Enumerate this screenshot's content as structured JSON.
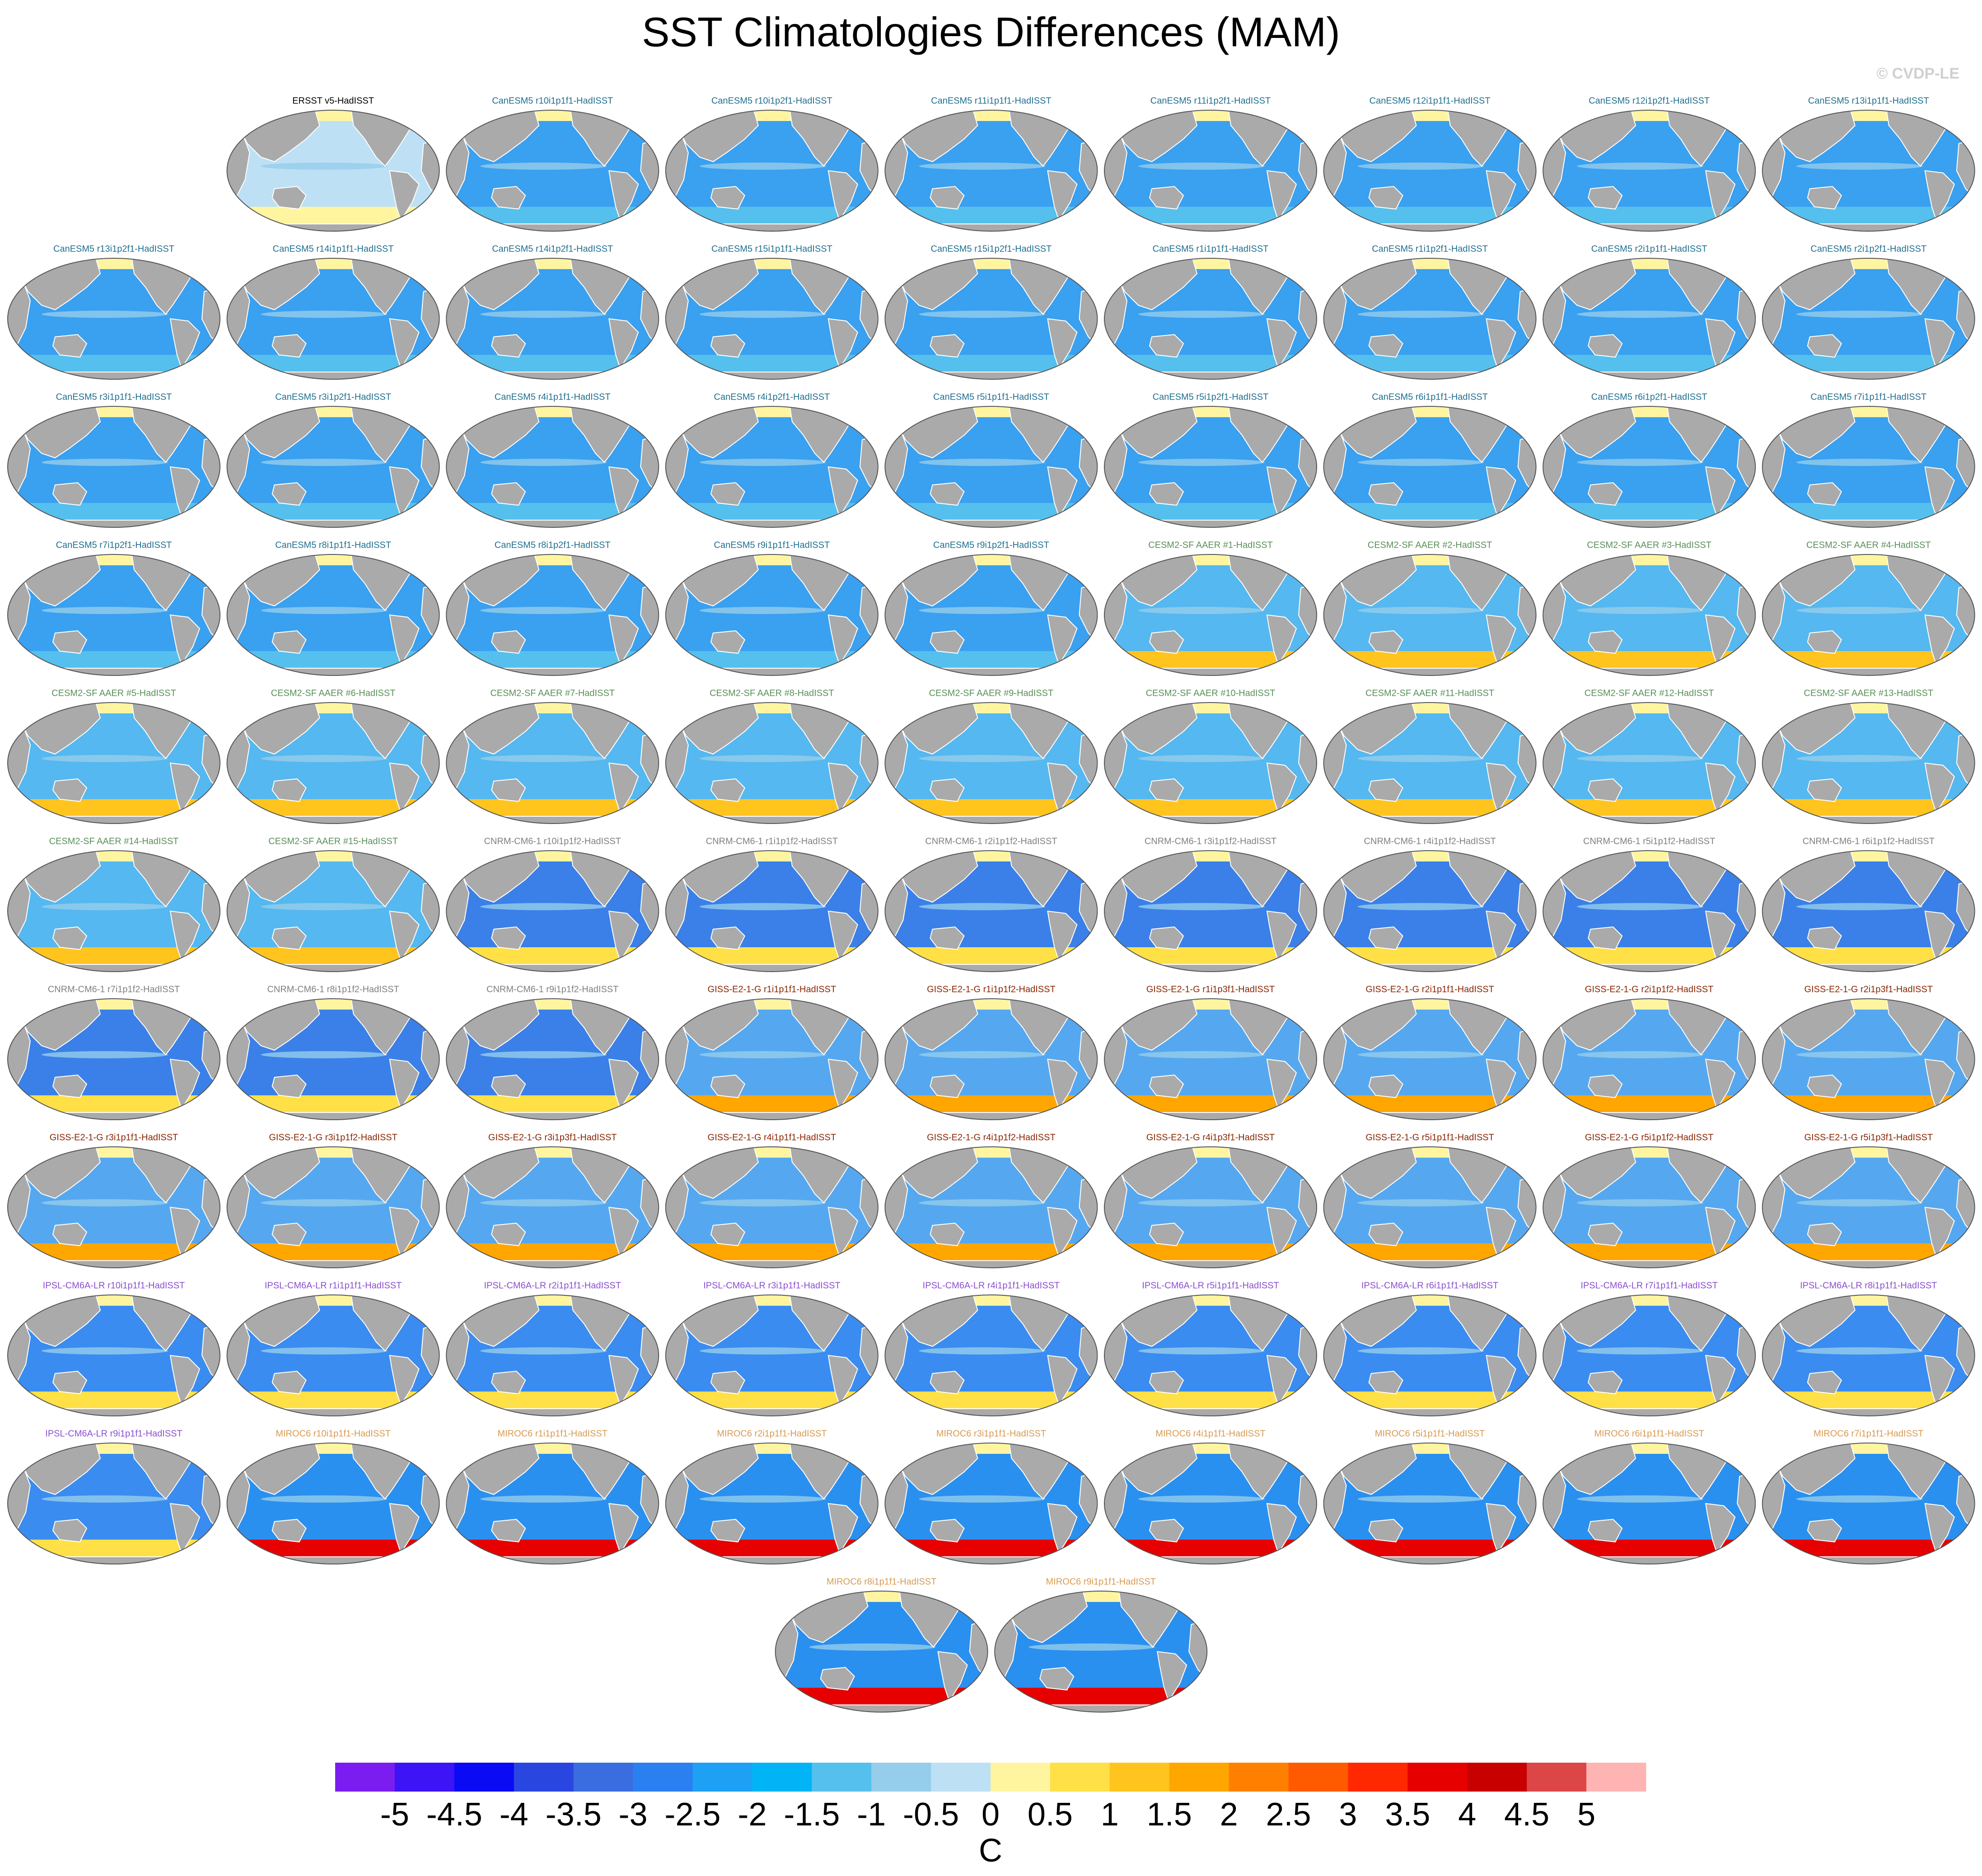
{
  "title": "SST Climatologies Differences (MAM)",
  "copyright": "© CVDP-LE",
  "panels": [
    {
      "label": "ERSST v5-HadISST",
      "color": "#000000",
      "fill": "#bde0f5",
      "accent": "#fff5a0"
    },
    {
      "label": "CanESM5 r10i1p1f1-HadISST",
      "color": "#1f6f8f",
      "fill": "#3aa0f0",
      "accent": "#55c0ee"
    },
    {
      "label": "CanESM5 r10i1p2f1-HadISST",
      "color": "#1f6f8f",
      "fill": "#3aa0f0",
      "accent": "#55c0ee"
    },
    {
      "label": "CanESM5 r11i1p1f1-HadISST",
      "color": "#1f6f8f",
      "fill": "#3aa0f0",
      "accent": "#55c0ee"
    },
    {
      "label": "CanESM5 r11i1p2f1-HadISST",
      "color": "#1f6f8f",
      "fill": "#3aa0f0",
      "accent": "#55c0ee"
    },
    {
      "label": "CanESM5 r12i1p1f1-HadISST",
      "color": "#1f6f8f",
      "fill": "#3aa0f0",
      "accent": "#55c0ee"
    },
    {
      "label": "CanESM5 r12i1p2f1-HadISST",
      "color": "#1f6f8f",
      "fill": "#3aa0f0",
      "accent": "#55c0ee"
    },
    {
      "label": "CanESM5 r13i1p1f1-HadISST",
      "color": "#1f6f8f",
      "fill": "#3aa0f0",
      "accent": "#55c0ee"
    },
    {
      "label": "CanESM5 r13i1p2f1-HadISST",
      "color": "#1f6f8f",
      "fill": "#3aa0f0",
      "accent": "#55c0ee"
    },
    {
      "label": "CanESM5 r14i1p1f1-HadISST",
      "color": "#1f6f8f",
      "fill": "#3aa0f0",
      "accent": "#55c0ee"
    },
    {
      "label": "CanESM5 r14i1p2f1-HadISST",
      "color": "#1f6f8f",
      "fill": "#3aa0f0",
      "accent": "#55c0ee"
    },
    {
      "label": "CanESM5 r15i1p1f1-HadISST",
      "color": "#1f6f8f",
      "fill": "#3aa0f0",
      "accent": "#55c0ee"
    },
    {
      "label": "CanESM5 r15i1p2f1-HadISST",
      "color": "#1f6f8f",
      "fill": "#3aa0f0",
      "accent": "#55c0ee"
    },
    {
      "label": "CanESM5 r1i1p1f1-HadISST",
      "color": "#1f6f8f",
      "fill": "#3aa0f0",
      "accent": "#55c0ee"
    },
    {
      "label": "CanESM5 r1i1p2f1-HadISST",
      "color": "#1f6f8f",
      "fill": "#3aa0f0",
      "accent": "#55c0ee"
    },
    {
      "label": "CanESM5 r2i1p1f1-HadISST",
      "color": "#1f6f8f",
      "fill": "#3aa0f0",
      "accent": "#55c0ee"
    },
    {
      "label": "CanESM5 r2i1p2f1-HadISST",
      "color": "#1f6f8f",
      "fill": "#3aa0f0",
      "accent": "#55c0ee"
    },
    {
      "label": "CanESM5 r3i1p1f1-HadISST",
      "color": "#1f6f8f",
      "fill": "#3aa0f0",
      "accent": "#55c0ee"
    },
    {
      "label": "CanESM5 r3i1p2f1-HadISST",
      "color": "#1f6f8f",
      "fill": "#3aa0f0",
      "accent": "#55c0ee"
    },
    {
      "label": "CanESM5 r4i1p1f1-HadISST",
      "color": "#1f6f8f",
      "fill": "#3aa0f0",
      "accent": "#55c0ee"
    },
    {
      "label": "CanESM5 r4i1p2f1-HadISST",
      "color": "#1f6f8f",
      "fill": "#3aa0f0",
      "accent": "#55c0ee"
    },
    {
      "label": "CanESM5 r5i1p1f1-HadISST",
      "color": "#1f6f8f",
      "fill": "#3aa0f0",
      "accent": "#55c0ee"
    },
    {
      "label": "CanESM5 r5i1p2f1-HadISST",
      "color": "#1f6f8f",
      "fill": "#3aa0f0",
      "accent": "#55c0ee"
    },
    {
      "label": "CanESM5 r6i1p1f1-HadISST",
      "color": "#1f6f8f",
      "fill": "#3aa0f0",
      "accent": "#55c0ee"
    },
    {
      "label": "CanESM5 r6i1p2f1-HadISST",
      "color": "#1f6f8f",
      "fill": "#3aa0f0",
      "accent": "#55c0ee"
    },
    {
      "label": "CanESM5 r7i1p1f1-HadISST",
      "color": "#1f6f8f",
      "fill": "#3aa0f0",
      "accent": "#55c0ee"
    },
    {
      "label": "CanESM5 r7i1p2f1-HadISST",
      "color": "#1f6f8f",
      "fill": "#3aa0f0",
      "accent": "#55c0ee"
    },
    {
      "label": "CanESM5 r8i1p1f1-HadISST",
      "color": "#1f6f8f",
      "fill": "#3aa0f0",
      "accent": "#55c0ee"
    },
    {
      "label": "CanESM5 r8i1p2f1-HadISST",
      "color": "#1f6f8f",
      "fill": "#3aa0f0",
      "accent": "#55c0ee"
    },
    {
      "label": "CanESM5 r9i1p1f1-HadISST",
      "color": "#1f6f8f",
      "fill": "#3aa0f0",
      "accent": "#55c0ee"
    },
    {
      "label": "CanESM5 r9i1p2f1-HadISST",
      "color": "#1f6f8f",
      "fill": "#3aa0f0",
      "accent": "#55c0ee"
    },
    {
      "label": "CESM2-SF AAER #1-HadISST",
      "color": "#5a8f5a",
      "fill": "#55b8f0",
      "accent": "#ffc41e"
    },
    {
      "label": "CESM2-SF AAER #2-HadISST",
      "color": "#5a8f5a",
      "fill": "#55b8f0",
      "accent": "#ffc41e"
    },
    {
      "label": "CESM2-SF AAER #3-HadISST",
      "color": "#5a8f5a",
      "fill": "#55b8f0",
      "accent": "#ffc41e"
    },
    {
      "label": "CESM2-SF AAER #4-HadISST",
      "color": "#5a8f5a",
      "fill": "#55b8f0",
      "accent": "#ffc41e"
    },
    {
      "label": "CESM2-SF AAER #5-HadISST",
      "color": "#5a8f5a",
      "fill": "#55b8f0",
      "accent": "#ffc41e"
    },
    {
      "label": "CESM2-SF AAER #6-HadISST",
      "color": "#5a8f5a",
      "fill": "#55b8f0",
      "accent": "#ffc41e"
    },
    {
      "label": "CESM2-SF AAER #7-HadISST",
      "color": "#5a8f5a",
      "fill": "#55b8f0",
      "accent": "#ffc41e"
    },
    {
      "label": "CESM2-SF AAER #8-HadISST",
      "color": "#5a8f5a",
      "fill": "#55b8f0",
      "accent": "#ffc41e"
    },
    {
      "label": "CESM2-SF AAER #9-HadISST",
      "color": "#5a8f5a",
      "fill": "#55b8f0",
      "accent": "#ffc41e"
    },
    {
      "label": "CESM2-SF AAER #10-HadISST",
      "color": "#5a8f5a",
      "fill": "#55b8f0",
      "accent": "#ffc41e"
    },
    {
      "label": "CESM2-SF AAER #11-HadISST",
      "color": "#5a8f5a",
      "fill": "#55b8f0",
      "accent": "#ffc41e"
    },
    {
      "label": "CESM2-SF AAER #12-HadISST",
      "color": "#5a8f5a",
      "fill": "#55b8f0",
      "accent": "#ffc41e"
    },
    {
      "label": "CESM2-SF AAER #13-HadISST",
      "color": "#5a8f5a",
      "fill": "#55b8f0",
      "accent": "#ffc41e"
    },
    {
      "label": "CESM2-SF AAER #14-HadISST",
      "color": "#5a8f5a",
      "fill": "#55b8f0",
      "accent": "#ffc41e"
    },
    {
      "label": "CESM2-SF AAER #15-HadISST",
      "color": "#5a8f5a",
      "fill": "#55b8f0",
      "accent": "#ffc41e"
    },
    {
      "label": "CNRM-CM6-1 r10i1p1f2-HadISST",
      "color": "#808080",
      "fill": "#3a80e8",
      "accent": "#ffe046"
    },
    {
      "label": "CNRM-CM6-1 r1i1p1f2-HadISST",
      "color": "#808080",
      "fill": "#3a80e8",
      "accent": "#ffe046"
    },
    {
      "label": "CNRM-CM6-1 r2i1p1f2-HadISST",
      "color": "#808080",
      "fill": "#3a80e8",
      "accent": "#ffe046"
    },
    {
      "label": "CNRM-CM6-1 r3i1p1f2-HadISST",
      "color": "#808080",
      "fill": "#3a80e8",
      "accent": "#ffe046"
    },
    {
      "label": "CNRM-CM6-1 r4i1p1f2-HadISST",
      "color": "#808080",
      "fill": "#3a80e8",
      "accent": "#ffe046"
    },
    {
      "label": "CNRM-CM6-1 r5i1p1f2-HadISST",
      "color": "#808080",
      "fill": "#3a80e8",
      "accent": "#ffe046"
    },
    {
      "label": "CNRM-CM6-1 r6i1p1f2-HadISST",
      "color": "#808080",
      "fill": "#3a80e8",
      "accent": "#ffe046"
    },
    {
      "label": "CNRM-CM6-1 r7i1p1f2-HadISST",
      "color": "#808080",
      "fill": "#3a80e8",
      "accent": "#ffe046"
    },
    {
      "label": "CNRM-CM6-1 r8i1p1f2-HadISST",
      "color": "#808080",
      "fill": "#3a80e8",
      "accent": "#ffe046"
    },
    {
      "label": "CNRM-CM6-1 r9i1p1f2-HadISST",
      "color": "#808080",
      "fill": "#3a80e8",
      "accent": "#ffe046"
    },
    {
      "label": "GISS-E2-1-G r1i1p1f1-HadISST",
      "color": "#8b2500",
      "fill": "#55a8f0",
      "accent": "#ffa600"
    },
    {
      "label": "GISS-E2-1-G r1i1p1f2-HadISST",
      "color": "#8b2500",
      "fill": "#55a8f0",
      "accent": "#ffa600"
    },
    {
      "label": "GISS-E2-1-G r1i1p3f1-HadISST",
      "color": "#8b2500",
      "fill": "#55a8f0",
      "accent": "#ffa600"
    },
    {
      "label": "GISS-E2-1-G r2i1p1f1-HadISST",
      "color": "#8b2500",
      "fill": "#55a8f0",
      "accent": "#ffa600"
    },
    {
      "label": "GISS-E2-1-G r2i1p1f2-HadISST",
      "color": "#8b2500",
      "fill": "#55a8f0",
      "accent": "#ffa600"
    },
    {
      "label": "GISS-E2-1-G r2i1p3f1-HadISST",
      "color": "#8b2500",
      "fill": "#55a8f0",
      "accent": "#ffa600"
    },
    {
      "label": "GISS-E2-1-G r3i1p1f1-HadISST",
      "color": "#8b2500",
      "fill": "#55a8f0",
      "accent": "#ffa600"
    },
    {
      "label": "GISS-E2-1-G r3i1p1f2-HadISST",
      "color": "#8b2500",
      "fill": "#55a8f0",
      "accent": "#ffa600"
    },
    {
      "label": "GISS-E2-1-G r3i1p3f1-HadISST",
      "color": "#8b2500",
      "fill": "#55a8f0",
      "accent": "#ffa600"
    },
    {
      "label": "GISS-E2-1-G r4i1p1f1-HadISST",
      "color": "#8b2500",
      "fill": "#55a8f0",
      "accent": "#ffa600"
    },
    {
      "label": "GISS-E2-1-G r4i1p1f2-HadISST",
      "color": "#8b2500",
      "fill": "#55a8f0",
      "accent": "#ffa600"
    },
    {
      "label": "GISS-E2-1-G r4i1p3f1-HadISST",
      "color": "#8b2500",
      "fill": "#55a8f0",
      "accent": "#ffa600"
    },
    {
      "label": "GISS-E2-1-G r5i1p1f1-HadISST",
      "color": "#8b2500",
      "fill": "#55a8f0",
      "accent": "#ffa600"
    },
    {
      "label": "GISS-E2-1-G r5i1p1f2-HadISST",
      "color": "#8b2500",
      "fill": "#55a8f0",
      "accent": "#ffa600"
    },
    {
      "label": "GISS-E2-1-G r5i1p3f1-HadISST",
      "color": "#8b2500",
      "fill": "#55a8f0",
      "accent": "#ffa600"
    },
    {
      "label": "IPSL-CM6A-LR r10i1p1f1-HadISST",
      "color": "#8a4fd0",
      "fill": "#3a8cf0",
      "accent": "#ffe046"
    },
    {
      "label": "IPSL-CM6A-LR r1i1p1f1-HadISST",
      "color": "#8a4fd0",
      "fill": "#3a8cf0",
      "accent": "#ffe046"
    },
    {
      "label": "IPSL-CM6A-LR r2i1p1f1-HadISST",
      "color": "#8a4fd0",
      "fill": "#3a8cf0",
      "accent": "#ffe046"
    },
    {
      "label": "IPSL-CM6A-LR r3i1p1f1-HadISST",
      "color": "#8a4fd0",
      "fill": "#3a8cf0",
      "accent": "#ffe046"
    },
    {
      "label": "IPSL-CM6A-LR r4i1p1f1-HadISST",
      "color": "#8a4fd0",
      "fill": "#3a8cf0",
      "accent": "#ffe046"
    },
    {
      "label": "IPSL-CM6A-LR r5i1p1f1-HadISST",
      "color": "#8a4fd0",
      "fill": "#3a8cf0",
      "accent": "#ffe046"
    },
    {
      "label": "IPSL-CM6A-LR r6i1p1f1-HadISST",
      "color": "#8a4fd0",
      "fill": "#3a8cf0",
      "accent": "#ffe046"
    },
    {
      "label": "IPSL-CM6A-LR r7i1p1f1-HadISST",
      "color": "#8a4fd0",
      "fill": "#3a8cf0",
      "accent": "#ffe046"
    },
    {
      "label": "IPSL-CM6A-LR r8i1p1f1-HadISST",
      "color": "#8a4fd0",
      "fill": "#3a8cf0",
      "accent": "#ffe046"
    },
    {
      "label": "IPSL-CM6A-LR r9i1p1f1-HadISST",
      "color": "#8a4fd0",
      "fill": "#3a8cf0",
      "accent": "#ffe046"
    },
    {
      "label": "MIROC6 r10i1p1f1-HadISST",
      "color": "#d89a50",
      "fill": "#2a90f0",
      "accent": "#e60000"
    },
    {
      "label": "MIROC6 r1i1p1f1-HadISST",
      "color": "#d89a50",
      "fill": "#2a90f0",
      "accent": "#e60000"
    },
    {
      "label": "MIROC6 r2i1p1f1-HadISST",
      "color": "#d89a50",
      "fill": "#2a90f0",
      "accent": "#e60000"
    },
    {
      "label": "MIROC6 r3i1p1f1-HadISST",
      "color": "#d89a50",
      "fill": "#2a90f0",
      "accent": "#e60000"
    },
    {
      "label": "MIROC6 r4i1p1f1-HadISST",
      "color": "#d89a50",
      "fill": "#2a90f0",
      "accent": "#e60000"
    },
    {
      "label": "MIROC6 r5i1p1f1-HadISST",
      "color": "#d89a50",
      "fill": "#2a90f0",
      "accent": "#e60000"
    },
    {
      "label": "MIROC6 r6i1p1f1-HadISST",
      "color": "#d89a50",
      "fill": "#2a90f0",
      "accent": "#e60000"
    },
    {
      "label": "MIROC6 r7i1p1f1-HadISST",
      "color": "#d89a50",
      "fill": "#2a90f0",
      "accent": "#e60000"
    },
    {
      "label": "MIROC6 r8i1p1f1-HadISST",
      "color": "#d89a50",
      "fill": "#2a90f0",
      "accent": "#e60000"
    },
    {
      "label": "MIROC6 r9i1p1f1-HadISST",
      "color": "#d89a50",
      "fill": "#2a90f0",
      "accent": "#e60000"
    }
  ],
  "colorbar": {
    "levels": [
      -5,
      -4.5,
      -4,
      -3.5,
      -3,
      -2.5,
      -2,
      -1.5,
      -1,
      -0.5,
      0,
      0.5,
      1,
      1.5,
      2,
      2.5,
      3,
      3.5,
      4,
      4.5,
      5
    ],
    "colors": [
      "#7b1df0",
      "#3d14f5",
      "#0a0af5",
      "#2a46e0",
      "#3a6ee0",
      "#2a80f0",
      "#1ea0f5",
      "#00b4f5",
      "#55c0ee",
      "#96cdeb",
      "#bde0f5",
      "#fff5a0",
      "#ffe046",
      "#ffc41e",
      "#ffa600",
      "#ff8000",
      "#ff5a00",
      "#ff2800",
      "#e60000",
      "#c80000",
      "#dc4646",
      "#ffb4b4"
    ],
    "unit": "C"
  }
}
